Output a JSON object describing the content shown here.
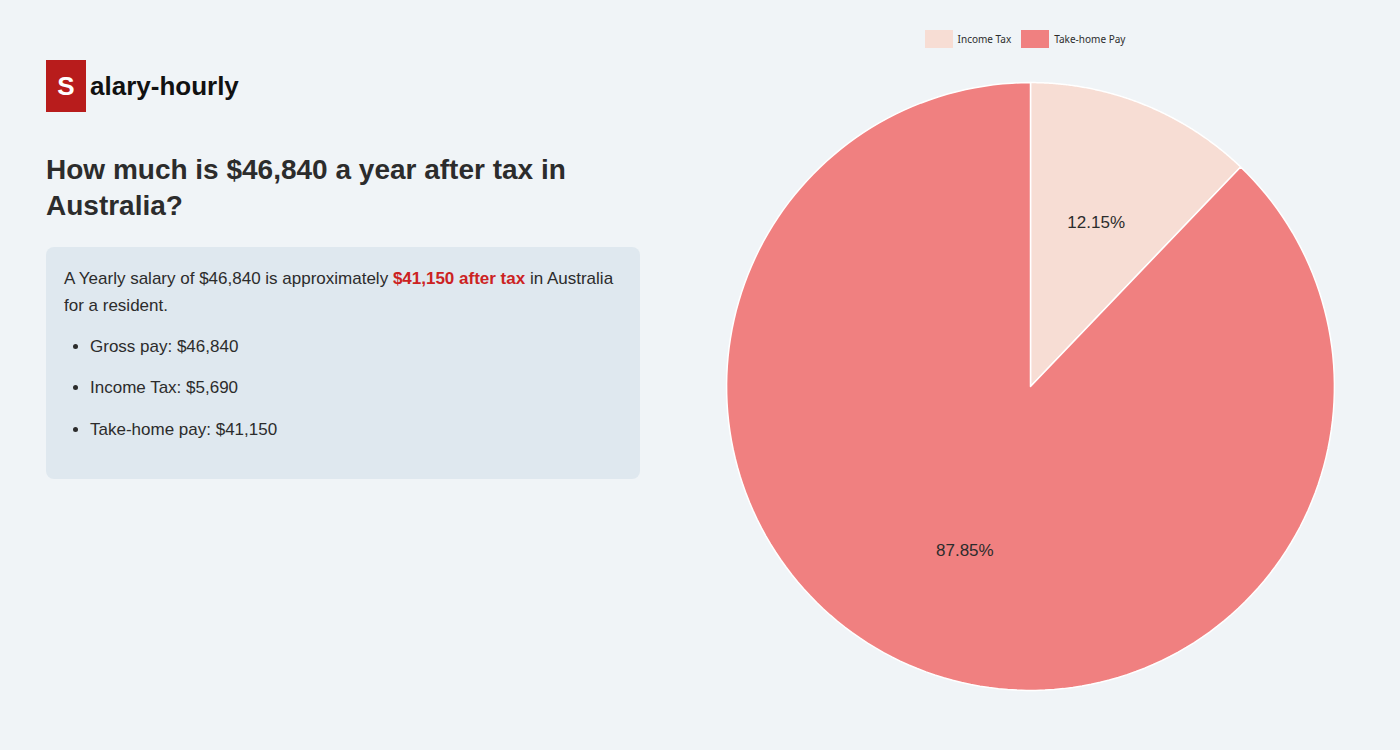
{
  "chart_data": {
    "type": "pie",
    "title": "How much is $46,840 a year after tax in Australia?",
    "categories": [
      "Income Tax",
      "Take-home Pay"
    ],
    "values": [
      12.15,
      87.85
    ],
    "value_labels": [
      "12.15%",
      "87.85%"
    ],
    "colors": [
      "#f7ddd4",
      "#f08080"
    ],
    "data_labels": true,
    "legend": "top",
    "annotations": [
      "Salary-hourly",
      "A Yearly salary of $46,840 is approximately ",
      "$41,150 after tax",
      " in Australia for a resident.",
      "Gross pay: $46,840",
      "Income Tax: $5,690",
      "Take-home pay: $41,150"
    ]
  }
}
